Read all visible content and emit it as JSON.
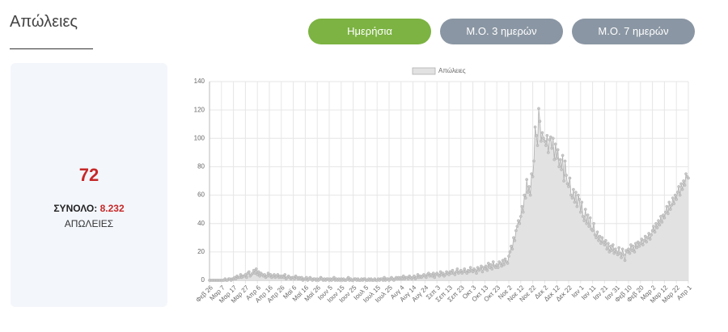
{
  "header": {
    "title": "Απώλειες"
  },
  "buttons": [
    "Ημερήσια",
    "Μ.Ο. 3 ημερών",
    "Μ.Ο. 7 ημερών"
  ],
  "summary": {
    "value": 72,
    "total_label": "ΣΥΝΟΛΟ:",
    "total": "8.232",
    "caption": "ΑΠΩΛΕΙΕΣ"
  },
  "chart_data": {
    "type": "line",
    "fill_area": true,
    "grid": true,
    "legend": "top",
    "ylim": [
      0,
      140
    ],
    "yticks": [
      0,
      20,
      40,
      60,
      80,
      100,
      120,
      140
    ],
    "categories": [
      "Φεβ 26",
      null,
      null,
      null,
      null,
      null,
      null,
      null,
      null,
      null,
      "Μαρ 7",
      null,
      null,
      null,
      null,
      null,
      null,
      null,
      null,
      null,
      "Μαρ 17",
      null,
      null,
      null,
      null,
      null,
      null,
      null,
      null,
      null,
      "Μαρ 27",
      null,
      null,
      null,
      null,
      null,
      null,
      null,
      null,
      null,
      "Απρ 6",
      null,
      null,
      null,
      null,
      null,
      null,
      null,
      null,
      null,
      "Απρ 16",
      null,
      null,
      null,
      null,
      null,
      null,
      null,
      null,
      null,
      "Απρ 26",
      null,
      null,
      null,
      null,
      null,
      null,
      null,
      null,
      null,
      "Μαϊ 6",
      null,
      null,
      null,
      null,
      null,
      null,
      null,
      null,
      null,
      "Μαϊ 16",
      null,
      null,
      null,
      null,
      null,
      null,
      null,
      null,
      null,
      "Μαϊ 26",
      null,
      null,
      null,
      null,
      null,
      null,
      null,
      null,
      null,
      "Ιουν 5",
      null,
      null,
      null,
      null,
      null,
      null,
      null,
      null,
      null,
      "Ιουν 15",
      null,
      null,
      null,
      null,
      null,
      null,
      null,
      null,
      null,
      "Ιουν 25",
      null,
      null,
      null,
      null,
      null,
      null,
      null,
      null,
      null,
      "Ιουλ 5",
      null,
      null,
      null,
      null,
      null,
      null,
      null,
      null,
      null,
      "Ιουλ 15",
      null,
      null,
      null,
      null,
      null,
      null,
      null,
      null,
      null,
      "Ιουλ 25",
      null,
      null,
      null,
      null,
      null,
      null,
      null,
      null,
      null,
      "Αυγ 4",
      null,
      null,
      null,
      null,
      null,
      null,
      null,
      null,
      null,
      "Αυγ 14",
      null,
      null,
      null,
      null,
      null,
      null,
      null,
      null,
      null,
      "Αυγ 24",
      null,
      null,
      null,
      null,
      null,
      null,
      null,
      null,
      null,
      "Σεπ 3",
      null,
      null,
      null,
      null,
      null,
      null,
      null,
      null,
      null,
      "Σεπ 13",
      null,
      null,
      null,
      null,
      null,
      null,
      null,
      null,
      null,
      "Σεπ 23",
      null,
      null,
      null,
      null,
      null,
      null,
      null,
      null,
      null,
      "Οκτ 3",
      null,
      null,
      null,
      null,
      null,
      null,
      null,
      null,
      null,
      "Οκτ 13",
      null,
      null,
      null,
      null,
      null,
      null,
      null,
      null,
      null,
      "Οκτ 23",
      null,
      null,
      null,
      null,
      null,
      null,
      null,
      null,
      null,
      "Νοε 2",
      null,
      null,
      null,
      null,
      null,
      null,
      null,
      null,
      null,
      "Νοε 12",
      null,
      null,
      null,
      null,
      null,
      null,
      null,
      null,
      null,
      "Νοε 22",
      null,
      null,
      null,
      null,
      null,
      null,
      null,
      null,
      null,
      "Δεκ 2",
      null,
      null,
      null,
      null,
      null,
      null,
      null,
      null,
      null,
      "Δεκ 12",
      null,
      null,
      null,
      null,
      null,
      null,
      null,
      null,
      null,
      "Δεκ 22",
      null,
      null,
      null,
      null,
      null,
      null,
      null,
      null,
      null,
      "Ιαν 1",
      null,
      null,
      null,
      null,
      null,
      null,
      null,
      null,
      null,
      "Ιαν 11",
      null,
      null,
      null,
      null,
      null,
      null,
      null,
      null,
      null,
      "Ιαν 21",
      null,
      null,
      null,
      null,
      null,
      null,
      null,
      null,
      null,
      "Ιαν 31",
      null,
      null,
      null,
      null,
      null,
      null,
      null,
      null,
      null,
      "Φεβ 10",
      null,
      null,
      null,
      null,
      null,
      null,
      null,
      null,
      null,
      "Φεβ 20",
      null,
      null,
      null,
      null,
      null,
      null,
      null,
      null,
      null,
      "Μαρ 2",
      null,
      null,
      null,
      null,
      null,
      null,
      null,
      null,
      null,
      "Μαρ 12",
      null,
      null,
      null,
      null,
      null,
      null,
      null,
      null,
      null,
      "Μαρ 22",
      null,
      null,
      null,
      null,
      null,
      null,
      null,
      null,
      null,
      "Απρ 1"
    ],
    "series": [
      {
        "name": "Απώλειες",
        "color": "#b0b0b0",
        "fill": "#e2e2e2",
        "values": [
          0,
          0,
          0,
          0,
          0,
          0,
          0,
          0,
          0,
          0,
          0,
          0,
          0,
          1,
          0,
          0,
          1,
          1,
          0,
          1,
          1,
          2,
          1,
          3,
          2,
          2,
          4,
          2,
          3,
          3,
          4,
          2,
          5,
          6,
          3,
          4,
          5,
          7,
          5,
          8,
          4,
          6,
          3,
          5,
          4,
          3,
          4,
          2,
          3,
          5,
          3,
          4,
          2,
          3,
          4,
          2,
          3,
          4,
          2,
          3,
          2,
          3,
          2,
          4,
          1,
          2,
          3,
          2,
          1,
          2,
          2,
          1,
          3,
          2,
          1,
          2,
          1,
          2,
          0,
          1,
          1,
          2,
          0,
          1,
          2,
          1,
          0,
          1,
          1,
          0,
          1,
          0,
          1,
          2,
          1,
          0,
          1,
          0,
          1,
          1,
          0,
          1,
          0,
          1,
          2,
          0,
          1,
          0,
          1,
          0,
          1,
          0,
          1,
          0,
          0,
          1,
          2,
          0,
          1,
          0,
          0,
          1,
          1,
          0,
          1,
          0,
          0,
          1,
          0,
          1,
          1,
          0,
          0,
          1,
          0,
          1,
          0,
          0,
          1,
          0,
          0,
          1,
          0,
          1,
          1,
          0,
          2,
          0,
          1,
          1,
          0,
          1,
          2,
          1,
          0,
          1,
          2,
          1,
          2,
          1,
          2,
          1,
          3,
          1,
          2,
          2,
          1,
          3,
          2,
          1,
          2,
          3,
          1,
          2,
          4,
          2,
          3,
          2,
          3,
          4,
          3,
          2,
          4,
          5,
          3,
          4,
          3,
          5,
          2,
          4,
          5,
          4,
          3,
          6,
          4,
          5,
          3,
          4,
          6,
          5,
          4,
          6,
          5,
          7,
          5,
          4,
          6,
          8,
          5,
          6,
          7,
          5,
          6,
          8,
          6,
          5,
          7,
          6,
          9,
          7,
          6,
          8,
          7,
          5,
          9,
          7,
          8,
          10,
          6,
          9,
          8,
          10,
          7,
          12,
          9,
          11,
          8,
          13,
          10,
          9,
          11,
          9,
          13,
          12,
          10,
          14,
          11,
          15,
          13,
          12,
          17,
          20,
          24,
          22,
          30,
          28,
          35,
          38,
          42,
          40,
          45,
          52,
          48,
          60,
          58,
          71,
          62,
          66,
          60,
          75,
          73,
          84,
          108,
          102,
          95,
          121,
          112,
          98,
          104,
          100,
          98,
          95,
          102,
          90,
          99,
          101,
          93,
          100,
          85,
          96,
          86,
          92,
          80,
          85,
          78,
          88,
          70,
          84,
          74,
          68,
          66,
          72,
          60,
          58,
          64,
          55,
          62,
          52,
          60,
          57,
          48,
          55,
          45,
          42,
          50,
          40,
          46,
          38,
          44,
          36,
          35,
          40,
          32,
          30,
          34,
          28,
          31,
          26,
          30,
          27,
          25,
          28,
          22,
          26,
          20,
          24,
          21,
          25,
          19,
          22,
          20,
          18,
          23,
          19,
          16,
          22,
          18,
          14,
          21,
          20,
          22,
          19,
          25,
          21,
          24,
          20,
          26,
          23,
          27,
          24,
          26,
          29,
          25,
          28,
          31,
          27,
          30,
          33,
          29,
          32,
          35,
          38,
          34,
          40,
          37,
          42,
          39,
          45,
          41,
          46,
          44,
          48,
          52,
          47,
          55,
          50,
          53,
          58,
          54,
          60,
          57,
          62,
          66,
          60,
          68,
          64,
          70,
          67,
          75,
          73,
          72
        ]
      }
    ]
  }
}
